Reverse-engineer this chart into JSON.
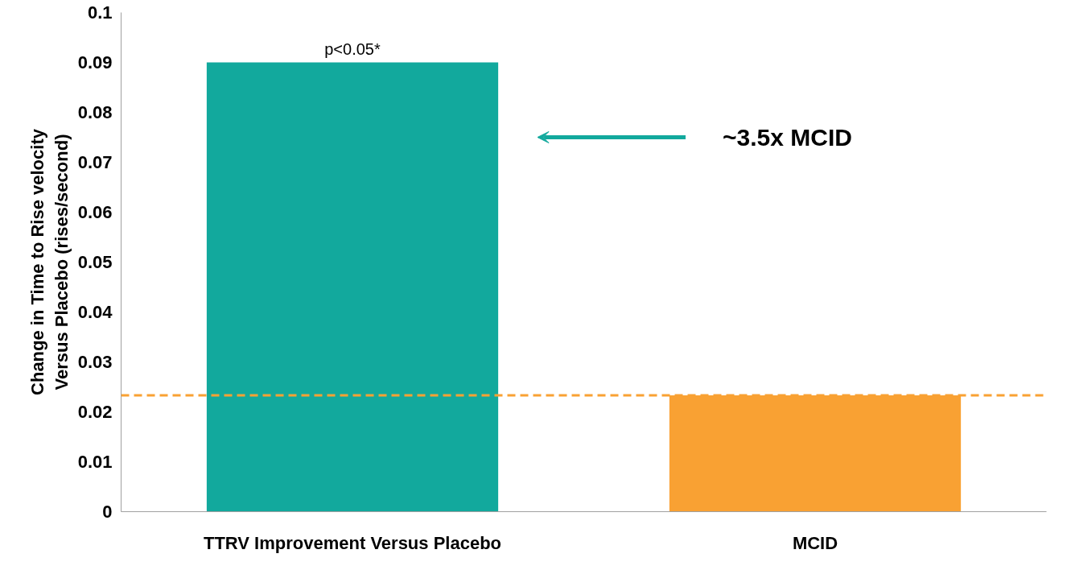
{
  "chart_data": {
    "type": "bar",
    "categories": [
      "TTRV Improvement Versus Placebo",
      "MCID"
    ],
    "values": [
      0.09,
      0.0233
    ],
    "colors": [
      "#12a99d",
      "#f9a133"
    ],
    "ylabel": "Change in Time to Rise velocity Versus Placebo (rises/second)",
    "ylim": [
      0,
      0.1
    ],
    "yticks": [
      0,
      0.01,
      0.02,
      0.03,
      0.04,
      0.05,
      0.06,
      0.07,
      0.08,
      0.09,
      0.1
    ],
    "ref_lines": [
      {
        "axis": "y",
        "value": 0.0233,
        "color": "#f9a133",
        "line_style": "dashed"
      }
    ],
    "annotations": [
      {
        "text": "p<0.05*",
        "x": "TTRV Improvement Versus Placebo",
        "y": 0.09
      },
      "~3.5x MCID"
    ],
    "grid": false
  }
}
